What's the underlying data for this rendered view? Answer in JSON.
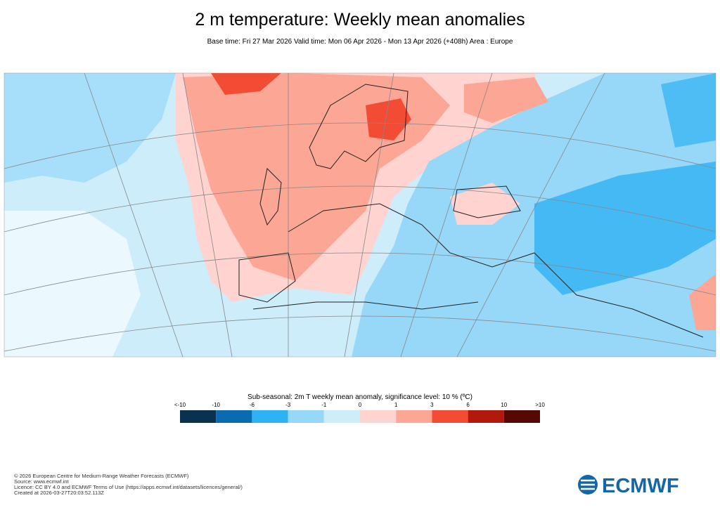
{
  "header": {
    "title": "2 m temperature: Weekly mean anomalies",
    "subtitle": "Base time: Fri 27 Mar 2026 Valid time: Mon 06 Apr 2026 - Mon 13 Apr 2026 (+408h) Area : Europe"
  },
  "legend": {
    "title": "Sub-seasonal: 2m T weekly mean anomaly, significance level: 10 % (ºC)",
    "labels": [
      "<-10",
      "-10",
      "-6",
      "-3",
      "-1",
      "0",
      "1",
      "3",
      "6",
      "10",
      ">10"
    ],
    "colors": [
      "#08324f",
      "#0a6bb0",
      "#2fb2f2",
      "#97d7f8",
      "#cdedfb",
      "#ffd3cf",
      "#fca695",
      "#f24c34",
      "#b0190b",
      "#560805"
    ]
  },
  "footer": {
    "lines": [
      "© 2026 European Centre for Medium-Range Weather Forecasts (ECMWF)",
      "Source: www.ecmwf.int",
      "Licence: CC BY 4.0 and ECMWF Terms of Use (https://apps.ecmwf.int/datasets/licences/general/)",
      "Created at 2026-03-27T20:03:52.113Z"
    ],
    "logo": "ECMWF"
  }
}
